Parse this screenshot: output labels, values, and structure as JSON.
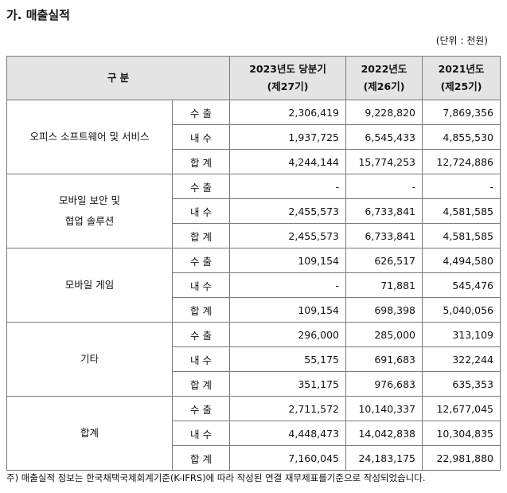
{
  "title": "가. 매출실적",
  "unit": "(단위 : 천원)",
  "header": {
    "category": "구 분",
    "col1": [
      "2023년도 당분기",
      "(제27기)"
    ],
    "col2": [
      "2022년도",
      "(제26기)"
    ],
    "col3": [
      "2021년도",
      "(제25기)"
    ]
  },
  "groups": [
    {
      "name": [
        "오피스 소프트웨어 및 서비스"
      ],
      "rows": [
        {
          "label": "수 출",
          "values": [
            "2,306,419",
            "9,228,820",
            "7,869,356"
          ]
        },
        {
          "label": "내 수",
          "values": [
            "1,937,725",
            "6,545,433",
            "4,855,530"
          ]
        },
        {
          "label": "합 계",
          "values": [
            "4,244,144",
            "15,774,253",
            "12,724,886"
          ]
        }
      ]
    },
    {
      "name": [
        "모바일 보안 및",
        "협업 솔루션"
      ],
      "rows": [
        {
          "label": "수 출",
          "values": [
            "-",
            "-",
            "-"
          ]
        },
        {
          "label": "내 수",
          "values": [
            "2,455,573",
            "6,733,841",
            "4,581,585"
          ]
        },
        {
          "label": "합 계",
          "values": [
            "2,455,573",
            "6,733,841",
            "4,581,585"
          ]
        }
      ]
    },
    {
      "name": [
        "모바일 게임"
      ],
      "rows": [
        {
          "label": "수 출",
          "values": [
            "109,154",
            "626,517",
            "4,494,580"
          ]
        },
        {
          "label": "내 수",
          "values": [
            "-",
            "71,881",
            "545,476"
          ]
        },
        {
          "label": "합 계",
          "values": [
            "109,154",
            "698,398",
            "5,040,056"
          ]
        }
      ]
    },
    {
      "name": [
        "기타"
      ],
      "rows": [
        {
          "label": "수 출",
          "values": [
            "296,000",
            "285,000",
            "313,109"
          ]
        },
        {
          "label": "내 수",
          "values": [
            "55,175",
            "691,683",
            "322,244"
          ]
        },
        {
          "label": "합 계",
          "values": [
            "351,175",
            "976,683",
            "635,353"
          ]
        }
      ]
    },
    {
      "name": [
        "합계"
      ],
      "rows": [
        {
          "label": "수 출",
          "values": [
            "2,711,572",
            "10,140,337",
            "12,677,045"
          ]
        },
        {
          "label": "내 수",
          "values": [
            "4,448,473",
            "14,042,838",
            "10,304,835"
          ]
        },
        {
          "label": "합 계",
          "values": [
            "7,160,045",
            "24,183,175",
            "22,981,880"
          ]
        }
      ]
    }
  ],
  "footnote": "주) 매출실적 정보는 한국채택국제회계기준(K-IFRS)에 따라 작성된 연결 재무제표를기준으로 작성되었습니다."
}
